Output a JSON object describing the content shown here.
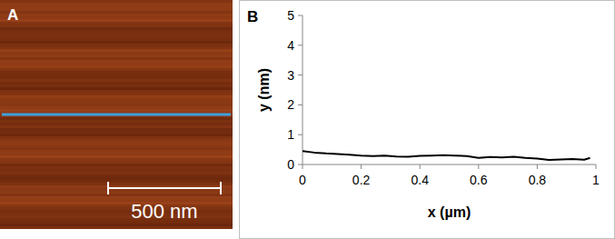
{
  "image": {
    "label": "A",
    "scale_bar": "500 nm"
  },
  "chart_data": {
    "type": "line",
    "title": "B",
    "x_label": "x (µm)",
    "y_label": "y (nm)",
    "x": [
      0,
      0.04,
      0.08,
      0.12,
      0.16,
      0.2,
      0.24,
      0.28,
      0.32,
      0.36,
      0.4,
      0.44,
      0.48,
      0.52,
      0.56,
      0.6,
      0.64,
      0.68,
      0.72,
      0.76,
      0.8,
      0.84,
      0.88,
      0.92,
      0.96,
      0.98
    ],
    "values": [
      0.45,
      0.4,
      0.37,
      0.35,
      0.33,
      0.3,
      0.28,
      0.3,
      0.27,
      0.26,
      0.29,
      0.3,
      0.31,
      0.3,
      0.28,
      0.22,
      0.25,
      0.24,
      0.26,
      0.22,
      0.2,
      0.15,
      0.17,
      0.18,
      0.16,
      0.22
    ],
    "color": "#000000",
    "xlim": [
      0,
      1
    ],
    "ylim": [
      0,
      5
    ],
    "xticks": [
      0,
      0.2,
      0.4,
      0.6,
      0.8,
      1
    ],
    "yticks": [
      0,
      1,
      2,
      3,
      4,
      5
    ],
    "grid": false
  }
}
